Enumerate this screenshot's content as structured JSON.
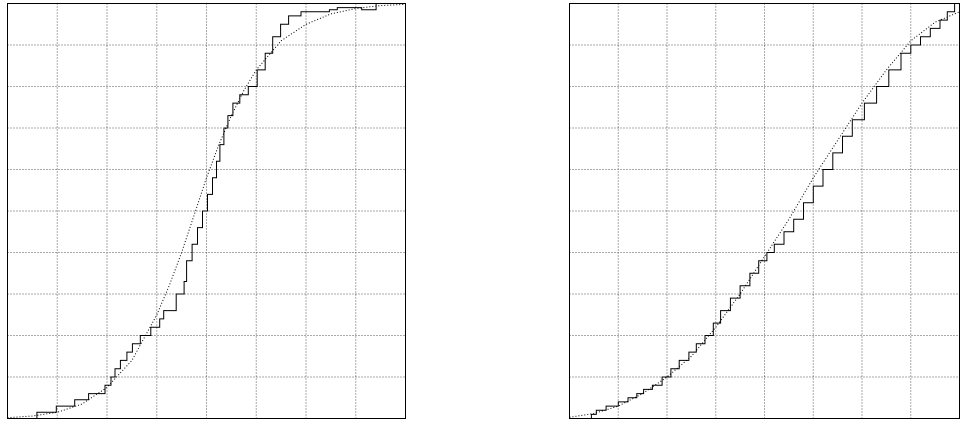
{
  "chart_data": [
    {
      "type": "line",
      "title": "",
      "xlabel": "",
      "ylabel": "",
      "xlim": [
        0,
        8
      ],
      "ylim": [
        0,
        1
      ],
      "grid": true,
      "series": [
        {
          "style": "step-solid",
          "color": "#000000",
          "x": [
            0.0,
            0.59,
            0.59,
            0.98,
            0.98,
            1.35,
            1.35,
            1.63,
            1.63,
            1.96,
            1.96,
            2.08,
            2.08,
            2.16,
            2.16,
            2.27,
            2.27,
            2.4,
            2.4,
            2.51,
            2.51,
            2.67,
            2.67,
            2.88,
            2.88,
            3.06,
            3.06,
            3.14,
            3.14,
            3.39,
            3.39,
            3.55,
            3.55,
            3.6,
            3.6,
            3.71,
            3.71,
            3.82,
            3.82,
            3.92,
            3.92,
            4.02,
            4.02,
            4.12,
            4.12,
            4.2,
            4.2,
            4.27,
            4.27,
            4.35,
            4.35,
            4.43,
            4.43,
            4.53,
            4.53,
            4.67,
            4.67,
            4.84,
            4.84,
            5.02,
            5.02,
            5.18,
            5.18,
            5.33,
            5.33,
            5.49,
            5.49,
            5.65,
            5.65,
            5.9,
            5.9,
            6.47,
            6.47,
            6.63,
            6.63,
            7.12,
            7.12,
            7.41,
            7.41,
            7.58,
            7.58,
            8.0
          ],
          "y": [
            0.0,
            0.0,
            0.015,
            0.015,
            0.03,
            0.03,
            0.045,
            0.045,
            0.06,
            0.06,
            0.08,
            0.08,
            0.1,
            0.1,
            0.12,
            0.12,
            0.14,
            0.14,
            0.16,
            0.16,
            0.18,
            0.18,
            0.2,
            0.2,
            0.22,
            0.22,
            0.24,
            0.24,
            0.26,
            0.26,
            0.3,
            0.3,
            0.33,
            0.33,
            0.38,
            0.38,
            0.42,
            0.42,
            0.46,
            0.46,
            0.5,
            0.5,
            0.54,
            0.54,
            0.58,
            0.58,
            0.62,
            0.62,
            0.66,
            0.66,
            0.7,
            0.7,
            0.73,
            0.73,
            0.76,
            0.76,
            0.78,
            0.78,
            0.8,
            0.8,
            0.84,
            0.84,
            0.88,
            0.88,
            0.92,
            0.92,
            0.95,
            0.95,
            0.97,
            0.97,
            0.98,
            0.98,
            0.985,
            0.985,
            0.99,
            0.99,
            0.985,
            0.985,
            1.0,
            1.0,
            1.0,
            1.0
          ]
        },
        {
          "style": "dotted",
          "color": "#000000",
          "x": [
            0.0,
            0.5,
            1.0,
            1.5,
            2.0,
            2.5,
            3.0,
            3.25,
            3.5,
            3.75,
            4.0,
            4.25,
            4.5,
            4.75,
            5.0,
            5.5,
            6.0,
            6.5,
            7.0,
            7.5,
            8.0
          ],
          "y": [
            0.002,
            0.006,
            0.015,
            0.035,
            0.075,
            0.14,
            0.25,
            0.32,
            0.4,
            0.49,
            0.58,
            0.66,
            0.73,
            0.79,
            0.84,
            0.91,
            0.95,
            0.975,
            0.988,
            0.995,
            0.998
          ]
        }
      ]
    },
    {
      "type": "line",
      "title": "",
      "xlabel": "",
      "ylabel": "",
      "xlim": [
        0,
        8
      ],
      "ylim": [
        0,
        1
      ],
      "grid": true,
      "series": [
        {
          "style": "step-solid",
          "color": "#000000",
          "x": [
            0.0,
            0.45,
            0.45,
            0.55,
            0.55,
            0.75,
            0.75,
            1.0,
            1.0,
            1.2,
            1.2,
            1.38,
            1.38,
            1.52,
            1.52,
            1.7,
            1.7,
            1.9,
            1.9,
            2.08,
            2.08,
            2.25,
            2.25,
            2.45,
            2.45,
            2.6,
            2.6,
            2.78,
            2.78,
            2.95,
            2.95,
            3.1,
            3.1,
            3.3,
            3.3,
            3.5,
            3.5,
            3.7,
            3.7,
            3.88,
            3.88,
            4.05,
            4.05,
            4.2,
            4.2,
            4.4,
            4.4,
            4.6,
            4.6,
            4.8,
            4.8,
            5.0,
            5.0,
            5.2,
            5.2,
            5.4,
            5.4,
            5.6,
            5.6,
            5.8,
            5.8,
            6.05,
            6.05,
            6.3,
            6.3,
            6.55,
            6.55,
            6.8,
            6.8,
            7.0,
            7.0,
            7.2,
            7.2,
            7.4,
            7.4,
            7.6,
            7.6,
            7.75,
            7.75,
            7.9,
            7.9,
            8.0
          ],
          "y": [
            0.0,
            0.0,
            0.01,
            0.01,
            0.02,
            0.02,
            0.03,
            0.03,
            0.04,
            0.04,
            0.05,
            0.05,
            0.06,
            0.06,
            0.07,
            0.07,
            0.08,
            0.08,
            0.1,
            0.1,
            0.12,
            0.12,
            0.14,
            0.14,
            0.16,
            0.16,
            0.18,
            0.18,
            0.2,
            0.2,
            0.23,
            0.23,
            0.26,
            0.26,
            0.29,
            0.29,
            0.32,
            0.32,
            0.35,
            0.35,
            0.38,
            0.38,
            0.4,
            0.4,
            0.42,
            0.42,
            0.45,
            0.45,
            0.48,
            0.48,
            0.52,
            0.52,
            0.56,
            0.56,
            0.6,
            0.6,
            0.64,
            0.64,
            0.68,
            0.68,
            0.72,
            0.72,
            0.76,
            0.76,
            0.8,
            0.8,
            0.84,
            0.84,
            0.88,
            0.88,
            0.9,
            0.9,
            0.92,
            0.92,
            0.94,
            0.94,
            0.96,
            0.96,
            0.98,
            0.98,
            1.0,
            1.0
          ]
        },
        {
          "style": "dotted",
          "color": "#000000",
          "x": [
            0.0,
            0.5,
            1.0,
            1.5,
            2.0,
            2.5,
            3.0,
            3.5,
            4.0,
            4.5,
            5.0,
            5.5,
            6.0,
            6.5,
            7.0,
            7.5,
            8.0
          ],
          "y": [
            0.003,
            0.012,
            0.03,
            0.06,
            0.1,
            0.15,
            0.22,
            0.3,
            0.39,
            0.48,
            0.58,
            0.67,
            0.76,
            0.84,
            0.91,
            0.955,
            0.98
          ]
        }
      ]
    }
  ]
}
